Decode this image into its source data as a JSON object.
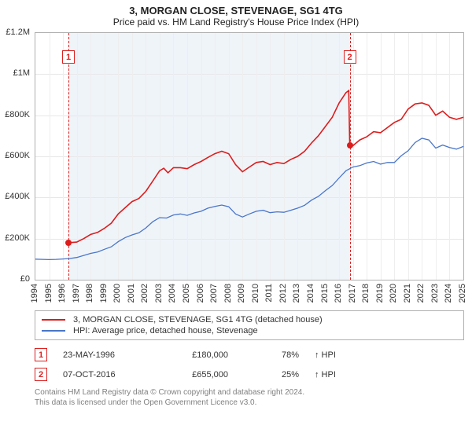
{
  "title": "3, MORGAN CLOSE, STEVENAGE, SG1 4TG",
  "subtitle": "Price paid vs. HM Land Registry's House Price Index (HPI)",
  "chart": {
    "type": "line",
    "background_color": "#ffffff",
    "border_color": "#b0b0b0",
    "grid_color": "#e7e7e7",
    "x_grid_color": "#eeeeee",
    "xlim": [
      1994,
      2025
    ],
    "ylim": [
      0,
      1200000
    ],
    "ytick_step": 200000,
    "yticks": [
      {
        "v": 0,
        "label": "£0"
      },
      {
        "v": 200000,
        "label": "£200K"
      },
      {
        "v": 400000,
        "label": "£400K"
      },
      {
        "v": 600000,
        "label": "£600K"
      },
      {
        "v": 800000,
        "label": "£800K"
      },
      {
        "v": 1000000,
        "label": "£1M"
      },
      {
        "v": 1200000,
        "label": "£1.2M"
      }
    ],
    "xticks": [
      1994,
      1995,
      1996,
      1997,
      1998,
      1999,
      2000,
      2001,
      2002,
      2003,
      2004,
      2005,
      2006,
      2007,
      2008,
      2009,
      2010,
      2011,
      2012,
      2013,
      2014,
      2015,
      2016,
      2017,
      2018,
      2019,
      2020,
      2021,
      2022,
      2023,
      2024,
      2025
    ],
    "shaded_region": {
      "start": 1996.4,
      "end": 2016.77,
      "color": "#eaf0f7"
    },
    "label_fontsize": 11,
    "title_fontsize": 13,
    "series": [
      {
        "name": "subject",
        "label": "3, MORGAN CLOSE, STEVENAGE, SG1 4TG (detached house)",
        "color": "#dd1c1c",
        "line_width": 1.6,
        "points": [
          [
            1996.4,
            180000
          ],
          [
            1997,
            183000
          ],
          [
            1997.5,
            200000
          ],
          [
            1998,
            220000
          ],
          [
            1998.5,
            230000
          ],
          [
            1999,
            250000
          ],
          [
            1999.5,
            275000
          ],
          [
            2000,
            320000
          ],
          [
            2000.5,
            350000
          ],
          [
            2001,
            380000
          ],
          [
            2001.5,
            395000
          ],
          [
            2002,
            430000
          ],
          [
            2002.5,
            480000
          ],
          [
            2003,
            530000
          ],
          [
            2003.3,
            542000
          ],
          [
            2003.6,
            520000
          ],
          [
            2004,
            545000
          ],
          [
            2004.5,
            545000
          ],
          [
            2005,
            540000
          ],
          [
            2005.5,
            560000
          ],
          [
            2006,
            575000
          ],
          [
            2006.5,
            595000
          ],
          [
            2007,
            613000
          ],
          [
            2007.5,
            625000
          ],
          [
            2008,
            613000
          ],
          [
            2008.5,
            560000
          ],
          [
            2009,
            525000
          ],
          [
            2009.5,
            548000
          ],
          [
            2010,
            570000
          ],
          [
            2010.5,
            575000
          ],
          [
            2011,
            560000
          ],
          [
            2011.5,
            570000
          ],
          [
            2012,
            565000
          ],
          [
            2012.5,
            585000
          ],
          [
            2013,
            600000
          ],
          [
            2013.5,
            625000
          ],
          [
            2014,
            665000
          ],
          [
            2014.5,
            700000
          ],
          [
            2015,
            745000
          ],
          [
            2015.5,
            790000
          ],
          [
            2016,
            860000
          ],
          [
            2016.5,
            910000
          ],
          [
            2016.7,
            920000
          ],
          [
            2016.77,
            655000
          ],
          [
            2017,
            652000
          ],
          [
            2017.5,
            680000
          ],
          [
            2018,
            695000
          ],
          [
            2018.5,
            720000
          ],
          [
            2019,
            715000
          ],
          [
            2019.5,
            740000
          ],
          [
            2020,
            765000
          ],
          [
            2020.5,
            780000
          ],
          [
            2021,
            830000
          ],
          [
            2021.5,
            855000
          ],
          [
            2022,
            860000
          ],
          [
            2022.5,
            848000
          ],
          [
            2023,
            800000
          ],
          [
            2023.5,
            820000
          ],
          [
            2024,
            790000
          ],
          [
            2024.5,
            780000
          ],
          [
            2025,
            790000
          ]
        ]
      },
      {
        "name": "hpi",
        "label": "HPI: Average price, detached house, Stevenage",
        "color": "#4a76c8",
        "line_width": 1.3,
        "points": [
          [
            1994,
            100000
          ],
          [
            1994.5,
            99000
          ],
          [
            1995,
            98000
          ],
          [
            1995.5,
            99000
          ],
          [
            1996,
            101000
          ],
          [
            1996.5,
            103000
          ],
          [
            1997,
            108000
          ],
          [
            1997.5,
            118000
          ],
          [
            1998,
            128000
          ],
          [
            1998.5,
            135000
          ],
          [
            1999,
            148000
          ],
          [
            1999.5,
            160000
          ],
          [
            2000,
            185000
          ],
          [
            2000.5,
            205000
          ],
          [
            2001,
            218000
          ],
          [
            2001.5,
            228000
          ],
          [
            2002,
            252000
          ],
          [
            2002.5,
            282000
          ],
          [
            2003,
            302000
          ],
          [
            2003.5,
            300000
          ],
          [
            2004,
            315000
          ],
          [
            2004.5,
            320000
          ],
          [
            2005,
            313000
          ],
          [
            2005.5,
            325000
          ],
          [
            2006,
            333000
          ],
          [
            2006.5,
            348000
          ],
          [
            2007,
            356000
          ],
          [
            2007.5,
            363000
          ],
          [
            2008,
            355000
          ],
          [
            2008.5,
            320000
          ],
          [
            2009,
            305000
          ],
          [
            2009.5,
            320000
          ],
          [
            2010,
            333000
          ],
          [
            2010.5,
            338000
          ],
          [
            2011,
            326000
          ],
          [
            2011.5,
            330000
          ],
          [
            2012,
            328000
          ],
          [
            2012.5,
            338000
          ],
          [
            2013,
            348000
          ],
          [
            2013.5,
            362000
          ],
          [
            2014,
            387000
          ],
          [
            2014.5,
            405000
          ],
          [
            2015,
            433000
          ],
          [
            2015.5,
            458000
          ],
          [
            2016,
            495000
          ],
          [
            2016.5,
            530000
          ],
          [
            2017,
            548000
          ],
          [
            2017.5,
            555000
          ],
          [
            2018,
            568000
          ],
          [
            2018.5,
            575000
          ],
          [
            2019,
            562000
          ],
          [
            2019.5,
            570000
          ],
          [
            2020,
            570000
          ],
          [
            2020.5,
            603000
          ],
          [
            2021,
            627000
          ],
          [
            2021.5,
            667000
          ],
          [
            2022,
            688000
          ],
          [
            2022.5,
            680000
          ],
          [
            2023,
            640000
          ],
          [
            2023.5,
            655000
          ],
          [
            2024,
            643000
          ],
          [
            2024.5,
            635000
          ],
          [
            2025,
            648000
          ]
        ]
      }
    ],
    "sale_markers": [
      {
        "id": "1",
        "x": 1996.4,
        "y": 180000,
        "color": "#dd1c1c"
      },
      {
        "id": "2",
        "x": 2016.77,
        "y": 655000,
        "color": "#dd1c1c"
      }
    ],
    "marker_badge": {
      "border_color": "#dc2020",
      "text_color": "#dc2020",
      "bg": "#ffffff"
    }
  },
  "legend": {
    "border_color": "#b0b0b0",
    "items": [
      {
        "color": "#dd1c1c",
        "label": "3, MORGAN CLOSE, STEVENAGE, SG1 4TG (detached house)"
      },
      {
        "color": "#4a76c8",
        "label": "HPI: Average price, detached house, Stevenage"
      }
    ]
  },
  "events": [
    {
      "badge": "1",
      "date": "23-MAY-1996",
      "price": "£180,000",
      "pct": "78%",
      "arrow": "↑",
      "suffix": "HPI"
    },
    {
      "badge": "2",
      "date": "07-OCT-2016",
      "price": "£655,000",
      "pct": "25%",
      "arrow": "↑",
      "suffix": "HPI"
    }
  ],
  "footer": {
    "line1": "Contains HM Land Registry data © Crown copyright and database right 2024.",
    "line2": "This data is licensed under the Open Government Licence v3.0."
  }
}
